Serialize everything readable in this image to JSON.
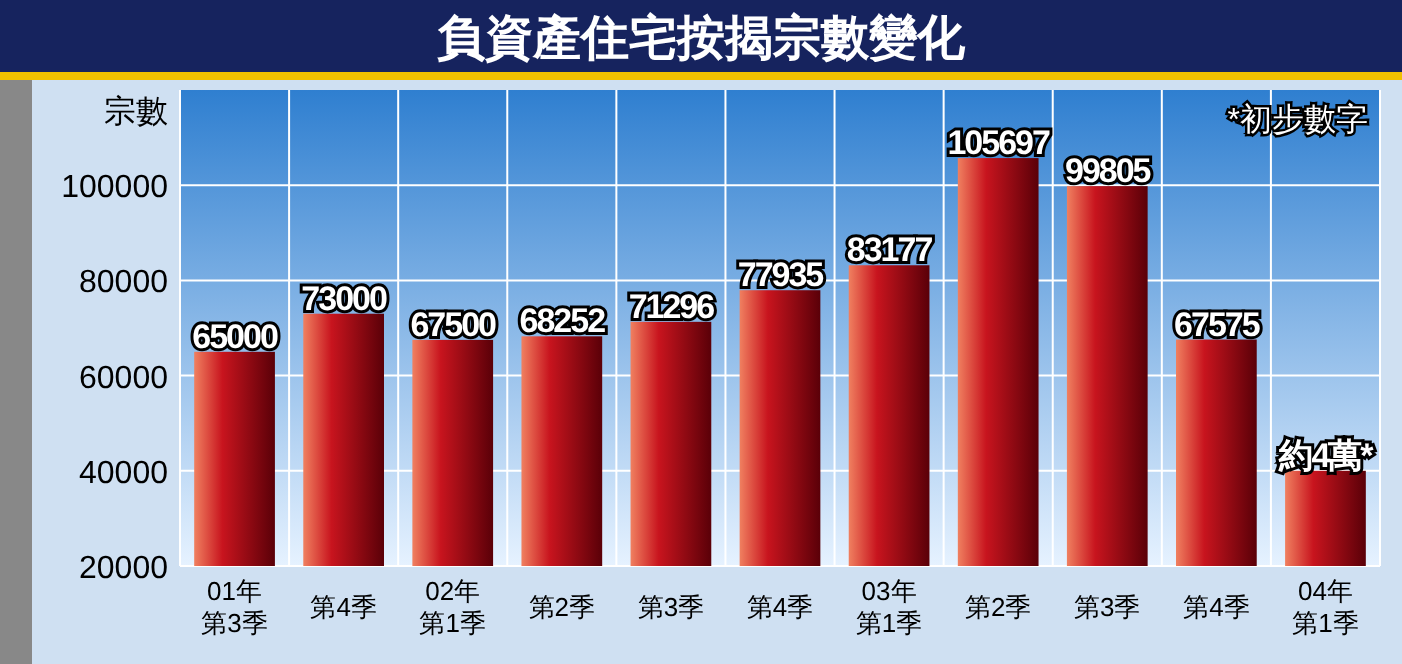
{
  "chart_data": {
    "type": "bar",
    "title": "負資產住宅按揭宗數變化",
    "ylabel": "宗數",
    "annotations": [
      "*初步數字"
    ],
    "categories": [
      "01年第3季",
      "第4季",
      "02年第1季",
      "第2季",
      "第3季",
      "第4季",
      "03年第1季",
      "第2季",
      "第3季",
      "第4季",
      "04年第1季"
    ],
    "values": [
      65000,
      73000,
      67500,
      68252,
      71296,
      77935,
      83177,
      105697,
      99805,
      67575,
      40000
    ],
    "value_labels": [
      "65000",
      "73000",
      "67500",
      "68252",
      "71296",
      "77935",
      "83177",
      "105697",
      "99805",
      "67575",
      "約4萬*"
    ],
    "color": "#c8141e",
    "ylim": [
      20000,
      120000
    ],
    "yticks": [
      20000,
      40000,
      60000,
      80000,
      100000
    ],
    "grid": true
  }
}
